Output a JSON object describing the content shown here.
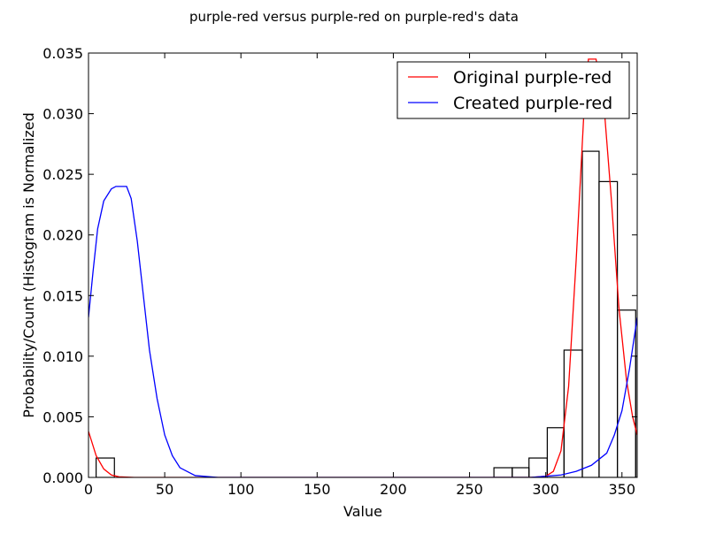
{
  "chart_data": {
    "type": "histogram-with-lines",
    "title": "purple-red versus purple-red on purple-red's data",
    "xlabel": "Value",
    "ylabel": "Probability/Count (Histogram is Normalized",
    "xlim": [
      0,
      360
    ],
    "ylim": [
      0,
      0.035
    ],
    "x_ticks": [
      0,
      50,
      100,
      150,
      200,
      250,
      300,
      350
    ],
    "y_ticks": [
      "0.000",
      "0.005",
      "0.010",
      "0.015",
      "0.020",
      "0.025",
      "0.030",
      "0.035"
    ],
    "grid": false,
    "legend_position": "top-right",
    "histogram": {
      "bins": [
        {
          "x0": 5,
          "x1": 17,
          "value": 0.0016
        },
        {
          "x0": 266,
          "x1": 278,
          "value": 0.0008
        },
        {
          "x0": 278,
          "x1": 289,
          "value": 0.0008
        },
        {
          "x0": 289,
          "x1": 301,
          "value": 0.0016
        },
        {
          "x0": 301,
          "x1": 312,
          "value": 0.0041
        },
        {
          "x0": 312,
          "x1": 324,
          "value": 0.0105
        },
        {
          "x0": 324,
          "x1": 335,
          "value": 0.0269
        },
        {
          "x0": 335,
          "x1": 347,
          "value": 0.0244
        },
        {
          "x0": 347,
          "x1": 359,
          "value": 0.0138
        },
        {
          "x0": 359,
          "x1": 360,
          "value": 0.01
        }
      ]
    },
    "series": [
      {
        "name": "Original purple-red",
        "color": "#ff0000",
        "points": [
          [
            0,
            0.0038
          ],
          [
            5,
            0.0018
          ],
          [
            10,
            0.0007
          ],
          [
            15,
            0.0002
          ],
          [
            20,
            5e-05
          ],
          [
            30,
            0.0
          ],
          [
            290,
            0.0
          ],
          [
            300,
            0.0001
          ],
          [
            305,
            0.0005
          ],
          [
            310,
            0.0022
          ],
          [
            315,
            0.0075
          ],
          [
            320,
            0.018
          ],
          [
            325,
            0.03
          ],
          [
            328,
            0.0345
          ],
          [
            333,
            0.0345
          ],
          [
            338,
            0.031
          ],
          [
            343,
            0.023
          ],
          [
            348,
            0.014
          ],
          [
            353,
            0.008
          ],
          [
            357,
            0.005
          ],
          [
            360,
            0.0035
          ]
        ]
      },
      {
        "name": "Created purple-red",
        "color": "#0000ff",
        "points": [
          [
            0,
            0.0132
          ],
          [
            3,
            0.017
          ],
          [
            6,
            0.0205
          ],
          [
            10,
            0.0228
          ],
          [
            15,
            0.0238
          ],
          [
            18,
            0.024
          ],
          [
            25,
            0.024
          ],
          [
            28,
            0.023
          ],
          [
            32,
            0.0195
          ],
          [
            36,
            0.015
          ],
          [
            40,
            0.0105
          ],
          [
            45,
            0.0065
          ],
          [
            50,
            0.0035
          ],
          [
            55,
            0.0018
          ],
          [
            60,
            0.0008
          ],
          [
            70,
            0.00015
          ],
          [
            85,
            0.0
          ],
          [
            290,
            0.0
          ],
          [
            310,
            0.0002
          ],
          [
            320,
            0.0005
          ],
          [
            330,
            0.001
          ],
          [
            340,
            0.002
          ],
          [
            345,
            0.0035
          ],
          [
            350,
            0.0055
          ],
          [
            355,
            0.009
          ],
          [
            360,
            0.0132
          ]
        ]
      }
    ]
  }
}
